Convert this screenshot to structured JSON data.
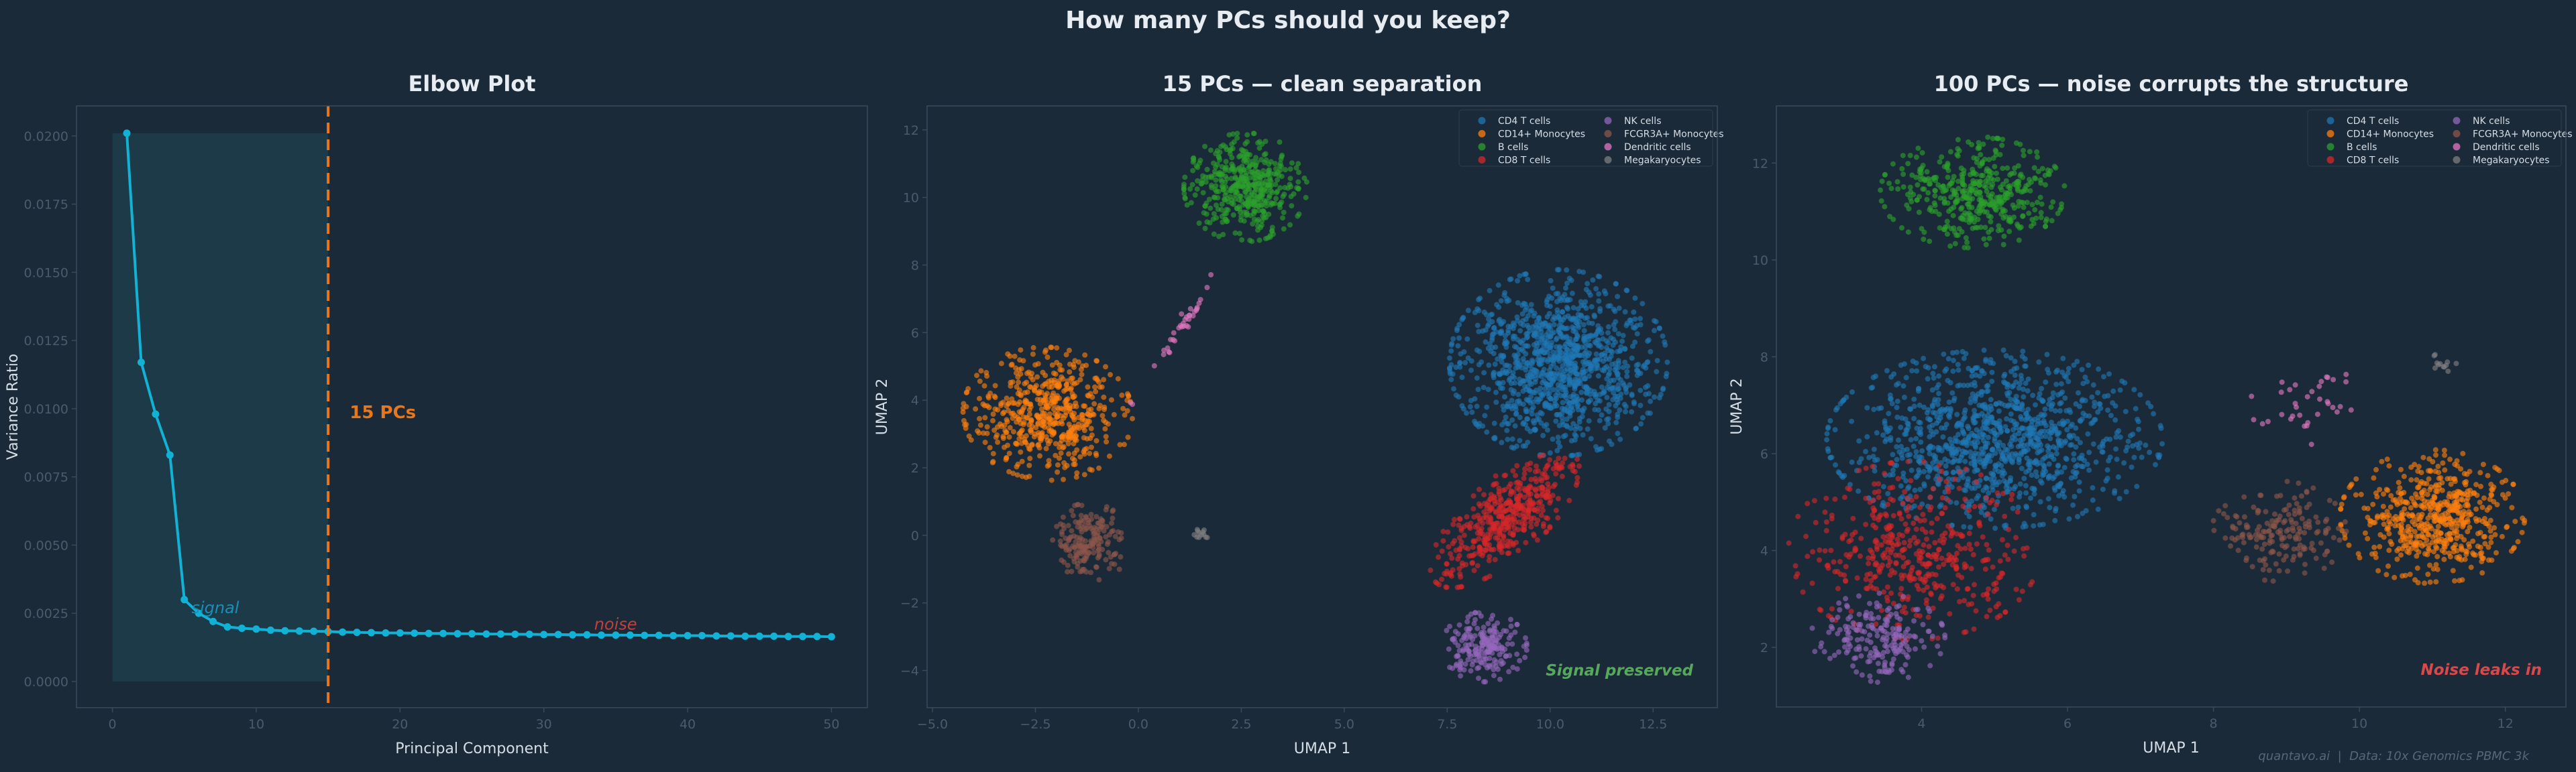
{
  "figure": {
    "suptitle": "How many PCs should you keep?",
    "footer": "quantavo.ai  |  Data: 10x Genomics PBMC 3k",
    "background": "#1b2a38"
  },
  "chart_data": [
    {
      "type": "line",
      "title": "Elbow Plot",
      "xlabel": "Principal Component",
      "ylabel": "Variance Ratio",
      "xlim": [
        -2.5,
        52.5
      ],
      "ylim": [
        -0.00096,
        0.0211
      ],
      "xticks": [
        0,
        10,
        20,
        30,
        40,
        50
      ],
      "xtick_labels": [
        "0",
        "10",
        "20",
        "30",
        "40",
        "50"
      ],
      "yticks": [
        0,
        0.0025,
        0.005,
        0.0075,
        0.01,
        0.0125,
        0.015,
        0.0175,
        0.02
      ],
      "ytick_labels": [
        "0.0000",
        "0.0025",
        "0.0050",
        "0.0075",
        "0.0100",
        "0.0125",
        "0.0150",
        "0.0175",
        "0.0200"
      ],
      "grid": false,
      "line_color": "#12b2d6",
      "x": [
        1,
        2,
        3,
        4,
        5,
        6,
        7,
        8,
        9,
        10,
        11,
        12,
        13,
        14,
        15,
        16,
        17,
        18,
        19,
        20,
        21,
        22,
        23,
        24,
        25,
        26,
        27,
        28,
        29,
        30,
        31,
        32,
        33,
        34,
        35,
        36,
        37,
        38,
        39,
        40,
        41,
        42,
        43,
        44,
        45,
        46,
        47,
        48,
        49,
        50
      ],
      "y": [
        0.0201,
        0.0117,
        0.0098,
        0.0083,
        0.003,
        0.0025,
        0.0022,
        0.002,
        0.00195,
        0.00192,
        0.00188,
        0.00186,
        0.00185,
        0.00184,
        0.00183,
        0.00181,
        0.0018,
        0.00179,
        0.00178,
        0.00178,
        0.00177,
        0.00176,
        0.00176,
        0.00175,
        0.00175,
        0.00174,
        0.00174,
        0.00173,
        0.00173,
        0.00172,
        0.00172,
        0.00171,
        0.00171,
        0.0017,
        0.0017,
        0.0017,
        0.00169,
        0.00169,
        0.00168,
        0.00168,
        0.00168,
        0.00167,
        0.00167,
        0.00166,
        0.00166,
        0.00166,
        0.00165,
        0.00165,
        0.00165,
        0.00164
      ],
      "shaded_region": {
        "x": [
          0,
          15
        ],
        "y": [
          0,
          0.0201
        ],
        "color": "#1c3a48"
      },
      "cutoff": {
        "x": 15,
        "label": "15 PCs",
        "label_y": 0.0099,
        "color": "#e8761a"
      },
      "annotations": [
        {
          "text": "signal",
          "x": 5.5,
          "y": 0.0025,
          "color": "#1a8fb5"
        },
        {
          "text": "noise",
          "x": 33.5,
          "y": 0.0019,
          "color": "#c0403f"
        }
      ]
    },
    {
      "type": "scatter",
      "title": "15 PCs — clean separation",
      "xlabel": "UMAP 1",
      "ylabel": "UMAP 2",
      "xlim": [
        -5.13,
        14.06
      ],
      "ylim": [
        -5.1,
        12.71
      ],
      "xticks": [
        -5,
        -2.5,
        0,
        2.5,
        5,
        7.5,
        10,
        12.5
      ],
      "xtick_labels": [
        "−5.0",
        "−2.5",
        "0.0",
        "2.5",
        "5.0",
        "7.5",
        "10.0",
        "12.5"
      ],
      "yticks": [
        -4,
        -2,
        0,
        2,
        4,
        6,
        8,
        10,
        12
      ],
      "ytick_labels": [
        "−4",
        "−2",
        "0",
        "2",
        "4",
        "6",
        "8",
        "10",
        "12"
      ],
      "grid": false,
      "legend_position": "top-right",
      "annotation": {
        "text": "Signal preserved",
        "color": "#56a85a",
        "position": "bottom-right"
      },
      "clusters": [
        {
          "name": "CD4 T cells",
          "color": "#1f77b4",
          "center": [
            10.2,
            5.1
          ],
          "spread": [
            1.15,
            1.2
          ],
          "rotation": 0,
          "n": 1100
        },
        {
          "name": "CD14+ Monocytes",
          "color": "#ff7f0e",
          "center": [
            -2.2,
            3.6
          ],
          "spread": [
            0.9,
            0.85
          ],
          "rotation": -20,
          "n": 550
        },
        {
          "name": "B cells",
          "color": "#2ca02c",
          "center": [
            2.6,
            10.3
          ],
          "spread": [
            0.65,
            0.7
          ],
          "rotation": 0,
          "n": 450
        },
        {
          "name": "CD8 T cells",
          "color": "#d62728",
          "center": [
            8.9,
            0.5
          ],
          "spread": [
            1.1,
            0.45
          ],
          "rotation": 50,
          "n": 450
        },
        {
          "name": "NK cells",
          "color": "#9467bd",
          "center": [
            8.4,
            -3.3
          ],
          "spread": [
            0.45,
            0.45
          ],
          "rotation": 0,
          "n": 200
        },
        {
          "name": "FCGR3A+ Monocytes",
          "color": "#8c564b",
          "center": [
            -1.2,
            -0.2
          ],
          "spread": [
            0.45,
            0.5
          ],
          "rotation": 0,
          "n": 180
        },
        {
          "name": "Dendritic cells",
          "color": "#e377c2",
          "center": [
            0.9,
            5.9
          ],
          "spread": [
            1.0,
            0.08
          ],
          "rotation": 62,
          "n": 35
        },
        {
          "name": "Megakaryocytes",
          "color": "#7f7f7f",
          "center": [
            1.5,
            0.0
          ],
          "spread": [
            0.08,
            0.08
          ],
          "rotation": 0,
          "n": 12
        }
      ]
    },
    {
      "type": "scatter",
      "title": "100 PCs — noise corrupts the structure",
      "xlabel": "UMAP 1",
      "ylabel": "UMAP 2",
      "xlim": [
        2.01,
        12.83
      ],
      "ylim": [
        0.77,
        13.18
      ],
      "xticks": [
        4,
        6,
        8,
        10,
        12
      ],
      "xtick_labels": [
        "4",
        "6",
        "8",
        "10",
        "12"
      ],
      "yticks": [
        2,
        4,
        6,
        8,
        10,
        12
      ],
      "ytick_labels": [
        "2",
        "4",
        "6",
        "8",
        "10",
        "12"
      ],
      "grid": false,
      "legend_position": "top-right",
      "annotation": {
        "text": "Noise leaks in",
        "color": "#d9484a",
        "position": "bottom-right"
      },
      "clusters": [
        {
          "name": "CD4 T cells",
          "color": "#1f77b4",
          "center": [
            5.0,
            6.3
          ],
          "spread": [
            1.0,
            0.8
          ],
          "rotation": 0,
          "n": 1100
        },
        {
          "name": "CD14+ Monocytes",
          "color": "#ff7f0e",
          "center": [
            11.0,
            4.7
          ],
          "spread": [
            0.55,
            0.6
          ],
          "rotation": 0,
          "n": 550
        },
        {
          "name": "B cells",
          "color": "#2ca02c",
          "center": [
            4.7,
            11.4
          ],
          "spread": [
            0.55,
            0.5
          ],
          "rotation": 0,
          "n": 450
        },
        {
          "name": "CD8 T cells",
          "color": "#d62728",
          "center": [
            3.9,
            4.0
          ],
          "spread": [
            0.75,
            0.8
          ],
          "rotation": 0,
          "n": 450
        },
        {
          "name": "NK cells",
          "color": "#9467bd",
          "center": [
            3.4,
            2.2
          ],
          "spread": [
            0.4,
            0.4
          ],
          "rotation": 0,
          "n": 200
        },
        {
          "name": "FCGR3A+ Monocytes",
          "color": "#8c564b",
          "center": [
            8.9,
            4.4
          ],
          "spread": [
            0.4,
            0.45
          ],
          "rotation": 0,
          "n": 180
        },
        {
          "name": "Dendritic cells",
          "color": "#e377c2",
          "center": [
            9.2,
            7.1
          ],
          "spread": [
            0.4,
            0.4
          ],
          "rotation": 0,
          "n": 35
        },
        {
          "name": "Megakaryocytes",
          "color": "#7f7f7f",
          "center": [
            11.1,
            7.9
          ],
          "spread": [
            0.1,
            0.1
          ],
          "rotation": 0,
          "n": 12
        }
      ]
    }
  ]
}
